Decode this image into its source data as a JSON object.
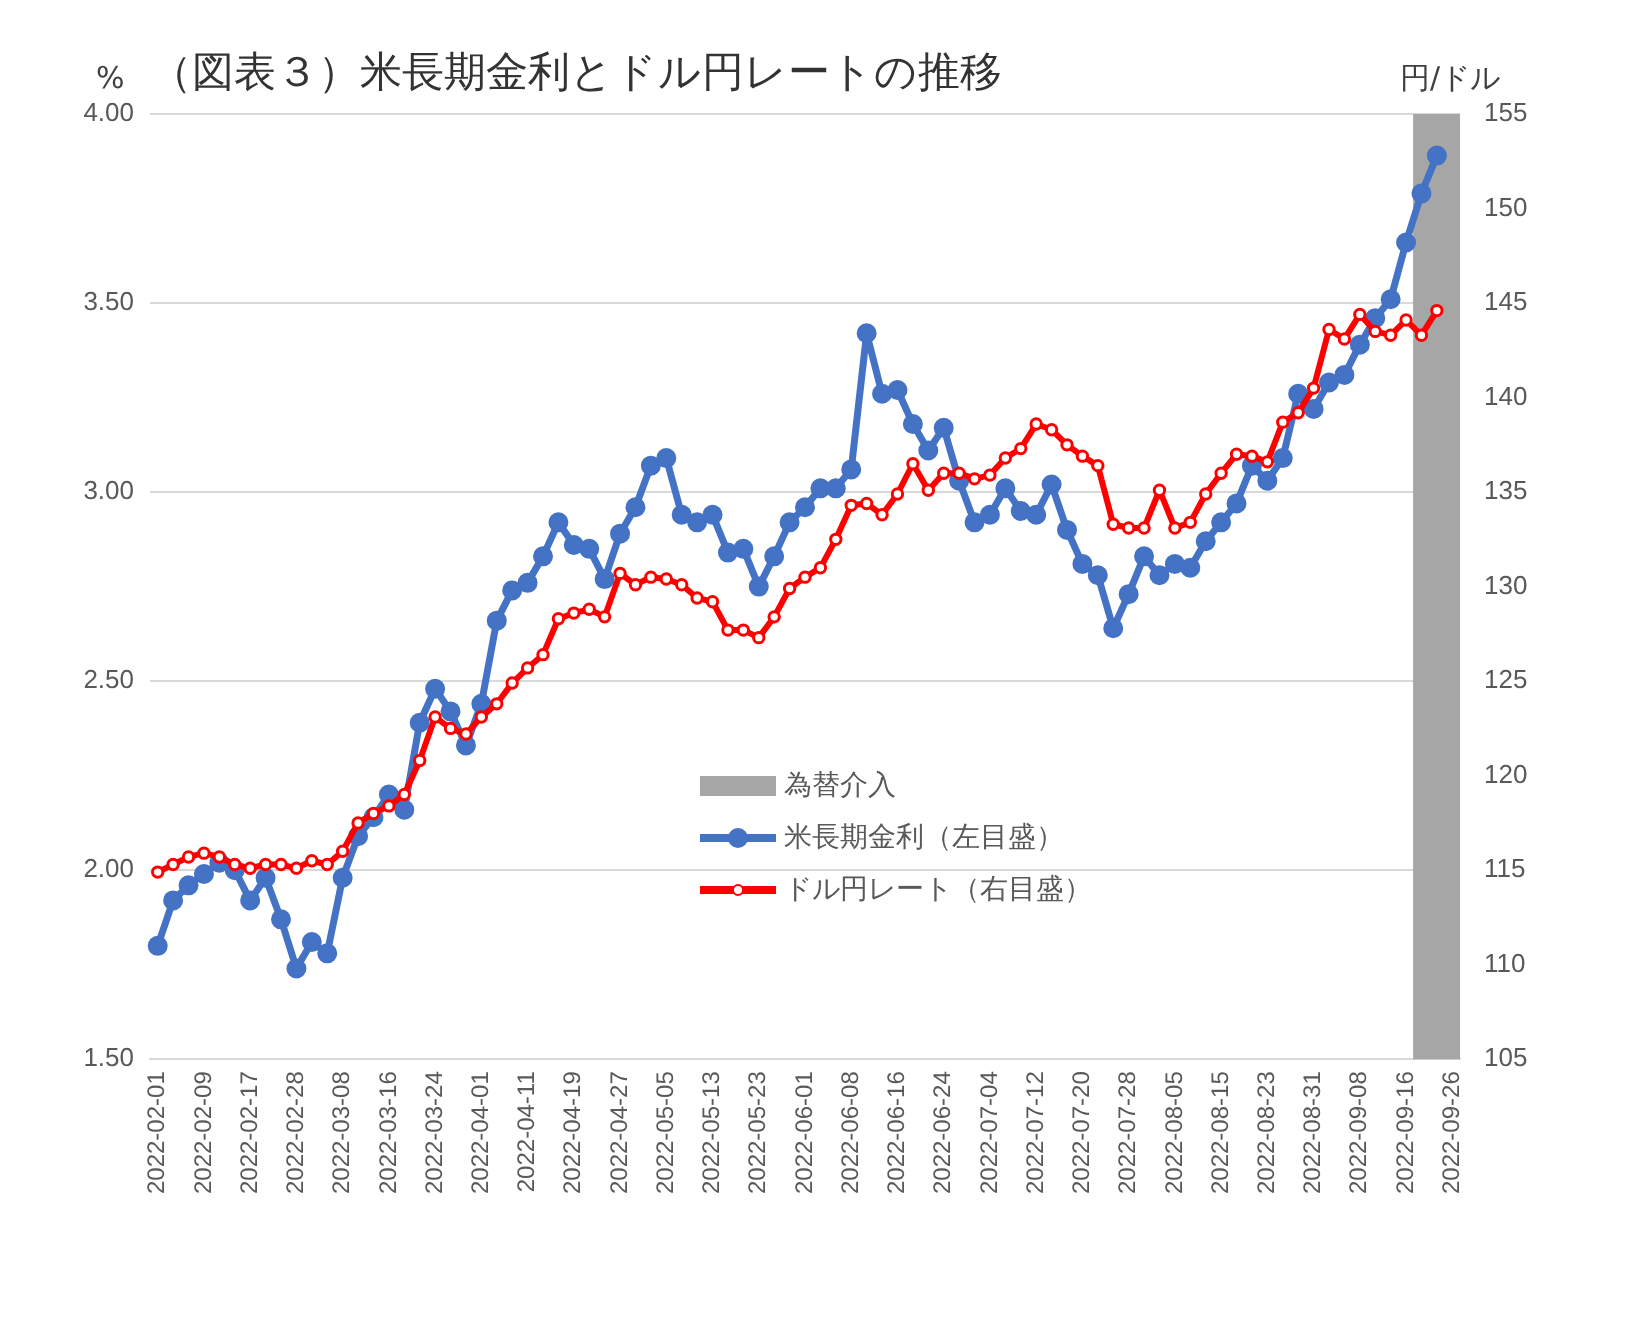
{
  "chart_data": {
    "type": "line",
    "title": "（図表３）米長期金利とドル円レートの推移",
    "ylabel": "%",
    "y2label": "円/ドル",
    "categories": [
      "2022-02-01",
      null,
      null,
      "2022-02-09",
      null,
      null,
      "2022-02-17",
      null,
      null,
      "2022-02-28",
      null,
      null,
      "2022-03-08",
      null,
      null,
      "2022-03-16",
      null,
      null,
      "2022-03-24",
      null,
      null,
      "2022-04-01",
      null,
      null,
      "2022-04-11",
      null,
      null,
      "2022-04-19",
      null,
      null,
      "2022-04-27",
      null,
      null,
      "2022-05-05",
      null,
      null,
      "2022-05-13",
      null,
      null,
      "2022-05-23",
      null,
      null,
      "2022-06-01",
      null,
      null,
      "2022-06-08",
      null,
      null,
      "2022-06-16",
      null,
      null,
      "2022-06-24",
      null,
      null,
      "2022-07-04",
      null,
      null,
      "2022-07-12",
      null,
      null,
      "2022-07-20",
      null,
      null,
      "2022-07-28",
      null,
      null,
      "2022-08-05",
      null,
      null,
      "2022-08-15",
      null,
      null,
      "2022-08-23",
      null,
      null,
      "2022-08-31",
      null,
      null,
      "2022-09-08",
      null,
      null,
      "2022-09-16",
      null,
      null,
      "2022-09-26"
    ],
    "series": [
      {
        "name": "為替介入",
        "type": "bar",
        "color": "#a6a6a6",
        "values": [
          null,
          null,
          null,
          null,
          null,
          null,
          null,
          null,
          null,
          null,
          null,
          null,
          null,
          null,
          null,
          null,
          null,
          null,
          null,
          null,
          null,
          null,
          null,
          null,
          null,
          null,
          null,
          null,
          null,
          null,
          null,
          null,
          null,
          null,
          null,
          null,
          null,
          null,
          null,
          null,
          null,
          null,
          null,
          null,
          null,
          null,
          null,
          null,
          null,
          null,
          null,
          null,
          null,
          null,
          null,
          null,
          null,
          null,
          null,
          null,
          null,
          null,
          null,
          null,
          null,
          null,
          null,
          null,
          null,
          null,
          null,
          null,
          null,
          null,
          null,
          null,
          null,
          null,
          null,
          null,
          null,
          null,
          4.0,
          4.0,
          4.0
        ]
      },
      {
        "name": "米長期金利（左目盛）",
        "color": "#4472c4",
        "marker": "circle",
        "values": [
          1.8,
          1.92,
          1.96,
          1.99,
          2.02,
          2.0,
          1.92,
          1.98,
          1.87,
          1.74,
          1.81,
          1.78,
          1.98,
          2.09,
          2.14,
          2.2,
          2.16,
          2.39,
          2.48,
          2.42,
          2.33,
          2.44,
          2.66,
          2.74,
          2.76,
          2.83,
          2.92,
          2.86,
          2.85,
          2.77,
          2.89,
          2.96,
          3.07,
          3.09,
          2.94,
          2.92,
          2.94,
          2.84,
          2.85,
          2.75,
          2.83,
          2.92,
          2.96,
          3.01,
          3.01,
          3.06,
          3.42,
          3.26,
          3.27,
          3.18,
          3.11,
          3.17,
          3.03,
          2.92,
          2.94,
          3.01,
          2.95,
          2.94,
          3.02,
          2.9,
          2.81,
          2.78,
          2.64,
          2.73,
          2.83,
          2.78,
          2.81,
          2.8,
          2.87,
          2.92,
          2.97,
          3.07,
          3.03,
          3.09,
          3.26,
          3.22,
          3.29,
          3.31,
          3.39,
          3.46,
          3.51,
          3.66,
          3.79,
          3.89,
          null
        ]
      },
      {
        "name": "ドル円レート（右目盛）",
        "axis": "y2",
        "color": "#ff0000",
        "marker": "circle",
        "values": [
          114.9,
          115.3,
          115.7,
          115.9,
          115.7,
          115.3,
          115.1,
          115.3,
          115.3,
          115.1,
          115.5,
          115.3,
          116.0,
          117.5,
          118.0,
          118.4,
          119.0,
          120.8,
          123.1,
          122.5,
          122.2,
          123.1,
          123.8,
          124.9,
          125.7,
          126.4,
          128.3,
          128.6,
          128.8,
          128.4,
          130.7,
          130.1,
          130.5,
          130.4,
          130.1,
          129.4,
          129.2,
          127.7,
          127.7,
          127.3,
          128.4,
          129.9,
          130.5,
          131.0,
          132.5,
          134.3,
          134.4,
          133.8,
          134.9,
          136.5,
          135.1,
          136.0,
          136.0,
          135.7,
          135.9,
          136.8,
          137.3,
          138.6,
          138.3,
          137.5,
          136.9,
          136.4,
          133.3,
          133.1,
          133.1,
          135.1,
          133.1,
          133.4,
          134.9,
          136.0,
          137.0,
          136.9,
          136.6,
          138.7,
          139.2,
          140.5,
          143.6,
          143.1,
          144.4,
          143.5,
          143.3,
          144.1,
          143.3,
          144.6,
          null
        ]
      }
    ],
    "ylim": [
      1.5,
      4.0
    ],
    "yticks": [
      {
        "value": 1.5,
        "label": "1.50"
      },
      {
        "value": 2.0,
        "label": "2.00"
      },
      {
        "value": 2.5,
        "label": "2.50"
      },
      {
        "value": 3.0,
        "label": "3.00"
      },
      {
        "value": 3.5,
        "label": "3.50"
      },
      {
        "value": 4.0,
        "label": "4.00"
      }
    ],
    "y2lim": [
      105,
      155
    ],
    "y2ticks": [
      105,
      110,
      115,
      120,
      125,
      130,
      135,
      140,
      145,
      150,
      155
    ],
    "grid": "y",
    "legend": "bottom",
    "line_style": "solid"
  }
}
